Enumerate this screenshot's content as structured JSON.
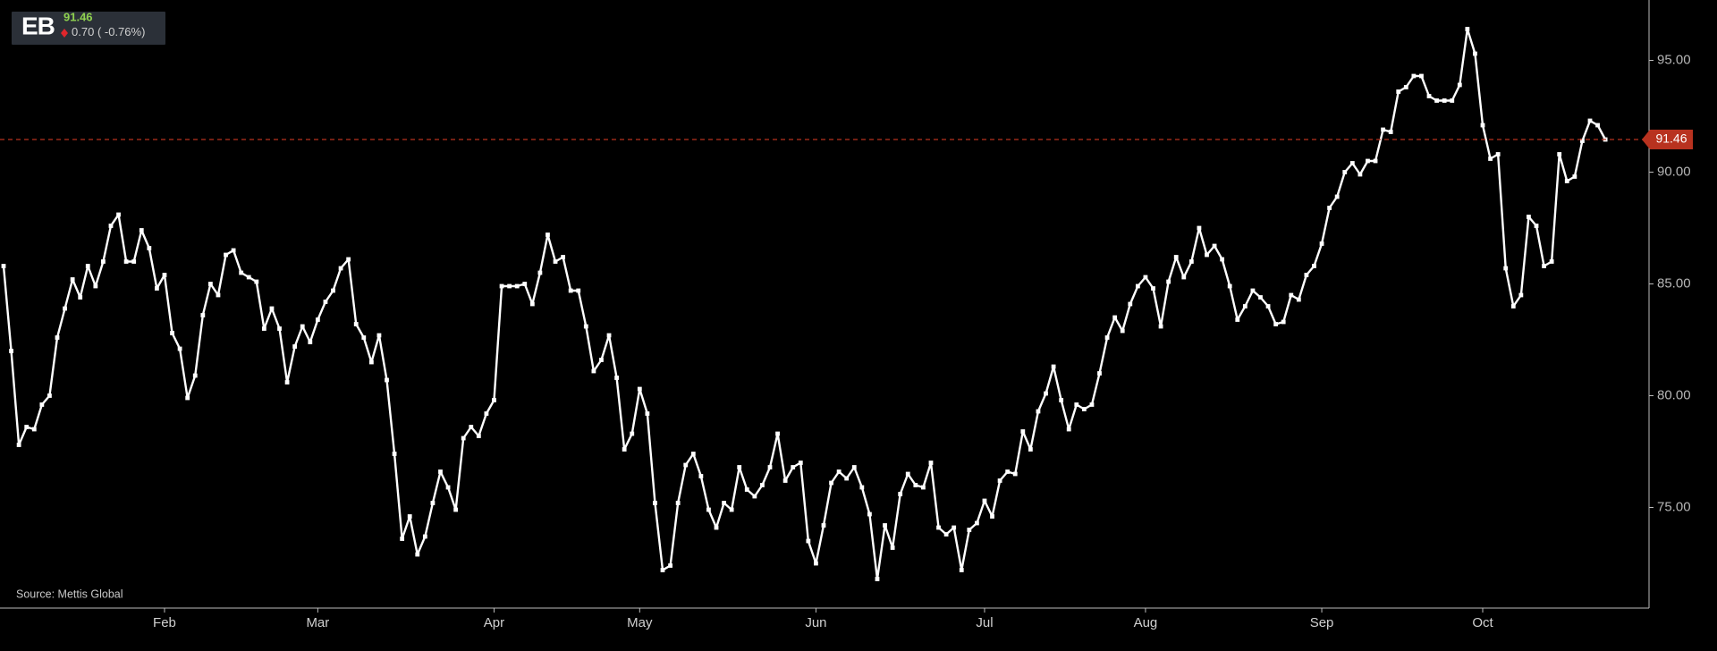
{
  "header": {
    "ticker": "EB",
    "change": "0.70",
    "change_pct": "( -0.76%)"
  },
  "source": "Source: Mettis Global",
  "chart_data": {
    "type": "line",
    "color": "#ffffff",
    "last_value_color": "#b8321f",
    "price_up_color": "#8fd14f",
    "change_color": "#e0262c",
    "categories": [
      null,
      null,
      null,
      null,
      null,
      null,
      null,
      null,
      null,
      null,
      null,
      null,
      null,
      null,
      null,
      null,
      null,
      null,
      null,
      null,
      null,
      "Feb",
      null,
      null,
      null,
      null,
      null,
      null,
      null,
      null,
      null,
      null,
      null,
      null,
      null,
      null,
      null,
      null,
      null,
      null,
      null,
      "Mar",
      null,
      null,
      null,
      null,
      null,
      null,
      null,
      null,
      null,
      null,
      null,
      null,
      null,
      null,
      null,
      null,
      null,
      null,
      null,
      null,
      null,
      null,
      "Apr",
      null,
      null,
      null,
      null,
      null,
      null,
      null,
      null,
      null,
      null,
      null,
      null,
      null,
      null,
      null,
      null,
      null,
      null,
      "May",
      null,
      null,
      null,
      null,
      null,
      null,
      null,
      null,
      null,
      null,
      null,
      null,
      null,
      null,
      null,
      null,
      null,
      null,
      null,
      null,
      null,
      null,
      "Jun",
      null,
      null,
      null,
      null,
      null,
      null,
      null,
      null,
      null,
      null,
      null,
      null,
      null,
      null,
      null,
      null,
      null,
      null,
      null,
      null,
      null,
      "Jul",
      null,
      null,
      null,
      null,
      null,
      null,
      null,
      null,
      null,
      null,
      null,
      null,
      null,
      null,
      null,
      null,
      null,
      null,
      null,
      null,
      "Aug",
      null,
      null,
      null,
      null,
      null,
      null,
      null,
      null,
      null,
      null,
      null,
      null,
      null,
      null,
      null,
      null,
      null,
      null,
      null,
      null,
      null,
      null,
      "Sep",
      null,
      null,
      null,
      null,
      null,
      null,
      null,
      null,
      null,
      null,
      null,
      null,
      null,
      null,
      null,
      null,
      null,
      null,
      null,
      null,
      "Oct",
      null,
      null,
      null,
      null,
      null,
      null,
      null,
      null,
      null,
      null,
      null,
      null,
      null,
      null,
      null,
      null
    ],
    "values": [
      85.8,
      82.0,
      77.8,
      78.6,
      78.5,
      79.6,
      80.0,
      82.6,
      83.9,
      85.2,
      84.4,
      85.8,
      84.9,
      86.0,
      87.6,
      88.1,
      86.0,
      86.0,
      87.4,
      86.6,
      84.8,
      85.4,
      82.8,
      82.1,
      79.9,
      80.9,
      83.6,
      85.0,
      84.5,
      86.3,
      86.5,
      85.5,
      85.3,
      85.1,
      83.0,
      83.9,
      83.0,
      80.6,
      82.2,
      83.1,
      82.4,
      83.4,
      84.2,
      84.7,
      85.7,
      86.1,
      83.2,
      82.6,
      81.5,
      82.7,
      80.7,
      77.4,
      73.6,
      74.6,
      72.9,
      73.7,
      75.2,
      76.6,
      75.9,
      74.9,
      78.1,
      78.6,
      78.2,
      79.2,
      79.8,
      84.9,
      84.9,
      84.9,
      85.0,
      84.1,
      85.5,
      87.2,
      86.0,
      86.2,
      84.7,
      84.7,
      83.1,
      81.1,
      81.6,
      82.7,
      80.8,
      77.6,
      78.3,
      80.3,
      79.2,
      75.2,
      72.2,
      72.4,
      75.2,
      76.9,
      77.4,
      76.4,
      74.9,
      74.1,
      75.2,
      74.9,
      76.8,
      75.8,
      75.5,
      76.0,
      76.8,
      78.3,
      76.2,
      76.8,
      77.0,
      73.5,
      72.5,
      74.2,
      76.1,
      76.6,
      76.3,
      76.8,
      75.9,
      74.7,
      71.8,
      74.2,
      73.2,
      75.6,
      76.5,
      76.0,
      75.9,
      77.0,
      74.1,
      73.8,
      74.1,
      72.2,
      74.0,
      74.3,
      75.3,
      74.6,
      76.2,
      76.6,
      76.5,
      78.4,
      77.6,
      79.3,
      80.1,
      81.3,
      79.8,
      78.5,
      79.6,
      79.4,
      79.6,
      81.0,
      82.6,
      83.5,
      82.9,
      84.1,
      84.9,
      85.3,
      84.8,
      83.1,
      85.1,
      86.2,
      85.3,
      86.0,
      87.5,
      86.3,
      86.7,
      86.1,
      84.9,
      83.4,
      84.0,
      84.7,
      84.4,
      84.0,
      83.2,
      83.3,
      84.5,
      84.3,
      85.4,
      85.8,
      86.8,
      88.4,
      88.9,
      90.0,
      90.4,
      89.9,
      90.5,
      90.5,
      91.9,
      91.8,
      93.6,
      93.8,
      94.3,
      94.3,
      93.4,
      93.2,
      93.2,
      93.2,
      93.9,
      96.4,
      95.3,
      92.1,
      90.6,
      90.8,
      85.7,
      84.0,
      84.5,
      88.0,
      87.6,
      85.8,
      86.0,
      90.8,
      89.6,
      89.8,
      91.4,
      92.3,
      92.1,
      91.46
    ],
    "ylim": [
      70.5,
      97.7
    ],
    "yticks": [
      {
        "value": 75,
        "label": "75.00"
      },
      {
        "value": 80,
        "label": "80.00"
      },
      {
        "value": 85,
        "label": "85.00"
      },
      {
        "value": 90,
        "label": "90.00"
      },
      {
        "value": 95,
        "label": "95.00"
      }
    ]
  }
}
